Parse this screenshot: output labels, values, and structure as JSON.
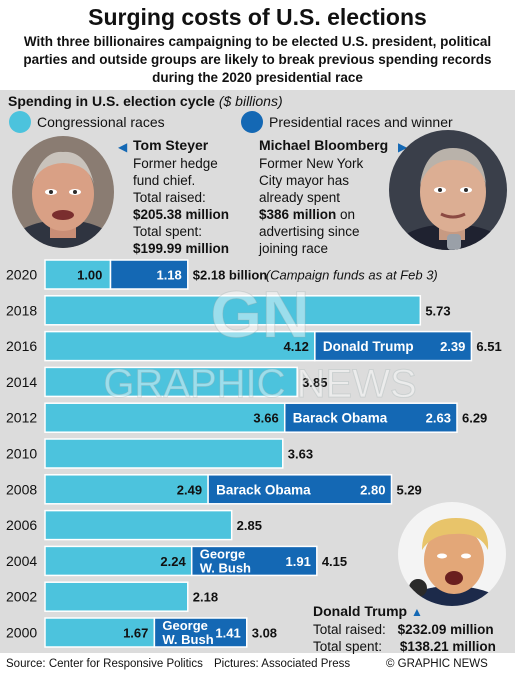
{
  "header": {
    "title": "Surging costs of U.S. elections",
    "subtitle": "With three billionaires campaigning to be elected U.S. president, political parties and outside groups are likely to break previous spending records during the 2020 presidential race"
  },
  "panel": {
    "label_bold": "Spending in U.S. election cycle",
    "label_unit": "($ billions)"
  },
  "legend": {
    "congressional": "Congressional races",
    "presidential": "Presidential races and winner"
  },
  "steyer": {
    "name": "Tom Steyer",
    "line1": "Former hedge",
    "line2": "fund chief.",
    "raised_label": "Total raised:",
    "raised_value": "$205.38 million",
    "spent_label": "Total spent:",
    "spent_value": "$199.99 million"
  },
  "bloomberg": {
    "name": "Michael Bloomberg",
    "line1": "Former New York",
    "line2": "City mayor has",
    "line3": "already spent",
    "spent_value": "$386 million",
    "line4": " on",
    "line5": "advertising since",
    "line6": "joining race"
  },
  "trump_box": {
    "name": "Donald Trump",
    "raised_label": "Total raised:",
    "raised_value": "$232.09 million",
    "spent_label": "Total spent:",
    "spent_value": "$138.21 million"
  },
  "chart_data": {
    "type": "bar",
    "stacked": true,
    "unit": "$ billions",
    "categories": [
      "2020",
      "2018",
      "2016",
      "2014",
      "2012",
      "2010",
      "2008",
      "2006",
      "2004",
      "2002",
      "2000"
    ],
    "series": [
      {
        "name": "Congressional races",
        "values": [
          1.0,
          5.73,
          4.12,
          3.85,
          3.66,
          3.63,
          2.49,
          2.85,
          2.24,
          2.18,
          1.67
        ]
      },
      {
        "name": "Presidential races and winner",
        "values": [
          1.18,
          null,
          2.39,
          null,
          2.63,
          null,
          2.8,
          null,
          1.91,
          null,
          1.41
        ]
      }
    ],
    "bar_labels": {
      "congressional": [
        "1.00",
        "5.73",
        "4.12",
        "3.85",
        "3.66",
        "3.63",
        "2.49",
        "2.85",
        "2.24",
        "2.18",
        "1.67"
      ],
      "presidential": [
        "1.18",
        "",
        "2.39",
        "",
        "2.63",
        "",
        "2.80",
        "",
        "1.91",
        "",
        "1.41"
      ],
      "winners": [
        "",
        "",
        "Donald Trump",
        "",
        "Barack Obama",
        "",
        "Barack Obama",
        "",
        "George|W. Bush",
        "",
        "George|W. Bush"
      ],
      "totals": [
        "$2.18 billion",
        "",
        "6.51",
        "",
        "6.29",
        "",
        "5.29",
        "",
        "4.15",
        "",
        "3.08"
      ]
    },
    "annotation_2020": "(Campaign funds as at Feb 3)",
    "colors": {
      "congressional": "#4cc3dd",
      "presidential": "#1468b4"
    }
  },
  "footer": {
    "source": "Source: Center for Responsive Politics",
    "pictures": "Pictures: Associated Press",
    "copyright": "© GRAPHIC NEWS"
  },
  "watermark": {
    "logo": "GN",
    "text": "GRAPHIC NEWS"
  }
}
